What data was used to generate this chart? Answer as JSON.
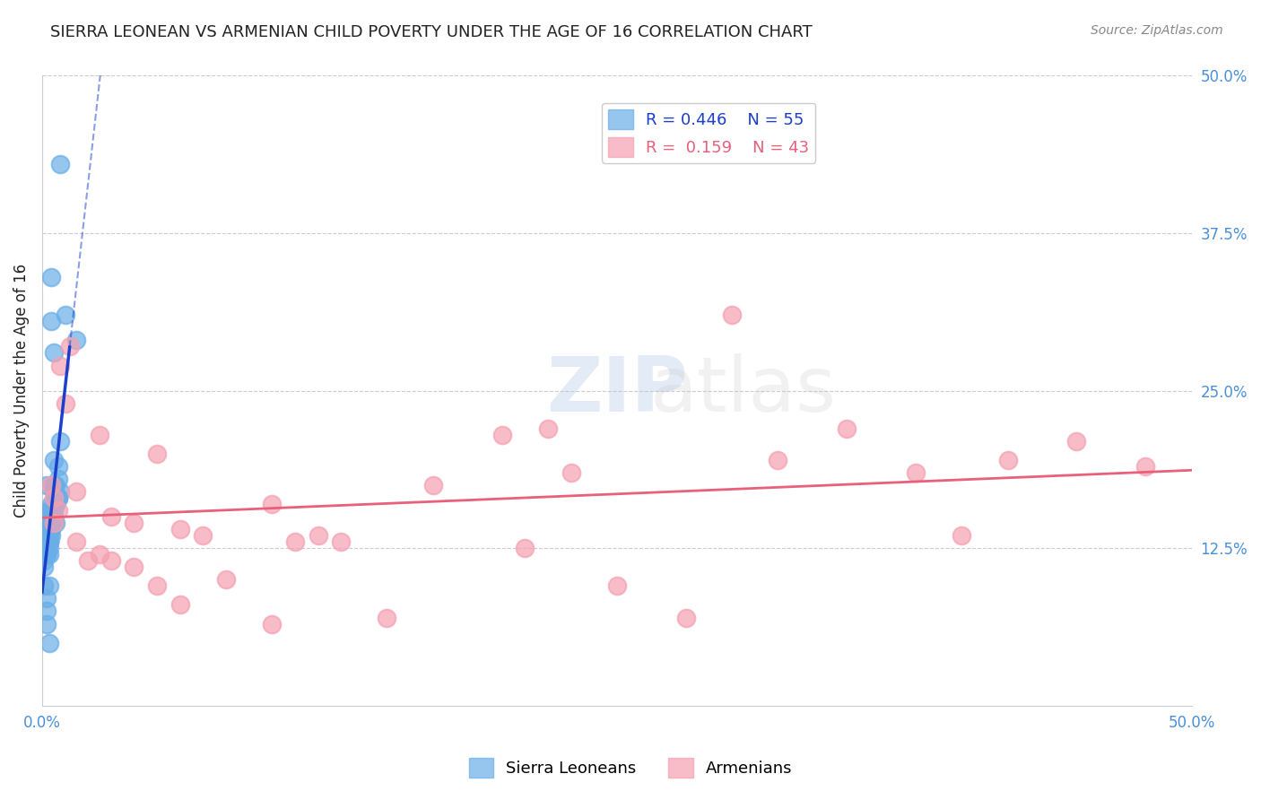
{
  "title": "SIERRA LEONEAN VS ARMENIAN CHILD POVERTY UNDER THE AGE OF 16 CORRELATION CHART",
  "source": "Source: ZipAtlas.com",
  "ylabel": "Child Poverty Under the Age of 16",
  "xlabel_ticks": [
    "0.0%",
    "50.0%"
  ],
  "right_ytick_labels": [
    "12.5%",
    "25.0%",
    "37.5%",
    "50.0%"
  ],
  "right_ytick_values": [
    0.125,
    0.25,
    0.375,
    0.5
  ],
  "xlim": [
    0.0,
    0.5
  ],
  "ylim": [
    0.0,
    0.5
  ],
  "legend": {
    "sl_R": "0.446",
    "sl_N": "55",
    "arm_R": "0.159",
    "arm_N": "43"
  },
  "sl_color": "#6aaee8",
  "arm_color": "#f4a0b0",
  "sl_line_color": "#1a3fcc",
  "arm_line_color": "#e8607a",
  "watermark": "ZIPatlas",
  "watermark_zip_color": "#aec6e8",
  "watermark_atlas_color": "#c8c8c8",
  "background_color": "#ffffff",
  "grid_color": "#cccccc",
  "title_color": "#222222",
  "right_label_color": "#4a90d9",
  "bottom_label_color": "#4a90d9",
  "sl_scatter_x": [
    0.002,
    0.004,
    0.003,
    0.001,
    0.005,
    0.008,
    0.007,
    0.006,
    0.003,
    0.002,
    0.004,
    0.005,
    0.006,
    0.007,
    0.003,
    0.002,
    0.001,
    0.004,
    0.003,
    0.005,
    0.006,
    0.007,
    0.008,
    0.003,
    0.002,
    0.004,
    0.005,
    0.006,
    0.001,
    0.003,
    0.004,
    0.005,
    0.007,
    0.003,
    0.002,
    0.001,
    0.004,
    0.006,
    0.003,
    0.005,
    0.004,
    0.003,
    0.002,
    0.006,
    0.005,
    0.007,
    0.003,
    0.002,
    0.008,
    0.004,
    0.01,
    0.005,
    0.015,
    0.003,
    0.002
  ],
  "sl_scatter_y": [
    0.175,
    0.34,
    0.155,
    0.135,
    0.195,
    0.21,
    0.165,
    0.175,
    0.145,
    0.14,
    0.16,
    0.17,
    0.165,
    0.19,
    0.13,
    0.12,
    0.115,
    0.155,
    0.14,
    0.16,
    0.145,
    0.165,
    0.17,
    0.13,
    0.125,
    0.155,
    0.175,
    0.16,
    0.11,
    0.135,
    0.14,
    0.15,
    0.165,
    0.13,
    0.12,
    0.095,
    0.145,
    0.165,
    0.125,
    0.155,
    0.135,
    0.12,
    0.085,
    0.16,
    0.145,
    0.18,
    0.095,
    0.065,
    0.43,
    0.305,
    0.31,
    0.28,
    0.29,
    0.05,
    0.075
  ],
  "arm_scatter_x": [
    0.004,
    0.005,
    0.008,
    0.01,
    0.012,
    0.015,
    0.025,
    0.03,
    0.04,
    0.05,
    0.06,
    0.07,
    0.1,
    0.11,
    0.12,
    0.13,
    0.2,
    0.21,
    0.22,
    0.23,
    0.25,
    0.28,
    0.3,
    0.32,
    0.35,
    0.38,
    0.4,
    0.42,
    0.45,
    0.005,
    0.007,
    0.015,
    0.02,
    0.025,
    0.03,
    0.04,
    0.05,
    0.06,
    0.08,
    0.1,
    0.15,
    0.17,
    0.48
  ],
  "arm_scatter_y": [
    0.175,
    0.165,
    0.27,
    0.24,
    0.285,
    0.17,
    0.215,
    0.15,
    0.145,
    0.2,
    0.14,
    0.135,
    0.16,
    0.13,
    0.135,
    0.13,
    0.215,
    0.125,
    0.22,
    0.185,
    0.095,
    0.07,
    0.31,
    0.195,
    0.22,
    0.185,
    0.135,
    0.195,
    0.21,
    0.145,
    0.155,
    0.13,
    0.115,
    0.12,
    0.115,
    0.11,
    0.095,
    0.08,
    0.1,
    0.065,
    0.07,
    0.175,
    0.19
  ]
}
